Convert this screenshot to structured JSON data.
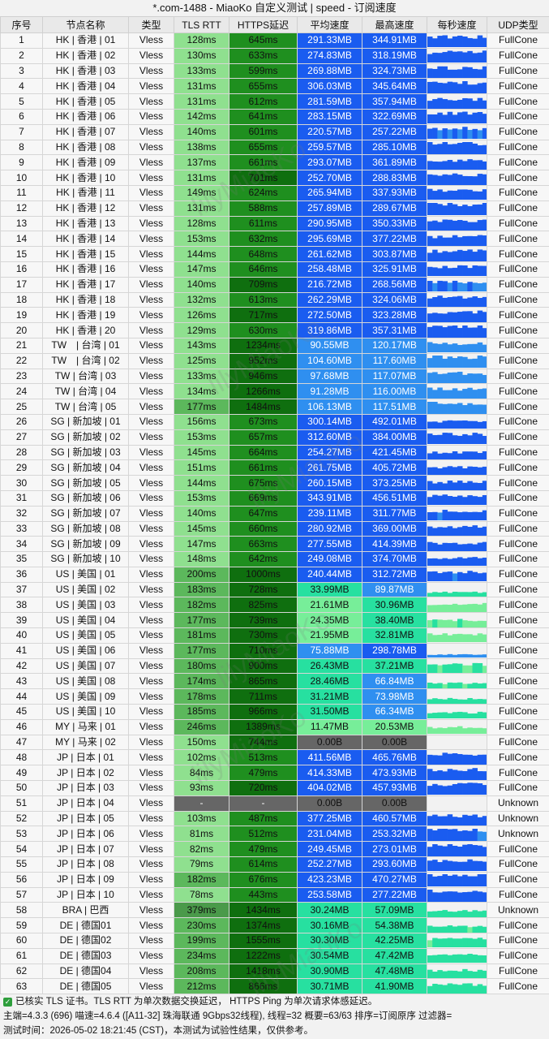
{
  "title": "*.com-1488 - MiaoKo 自定义测试 | speed - 订阅速度",
  "headers": [
    "序号",
    "节点名称",
    "类型",
    "TLS RTT",
    "HTTPS延迟",
    "平均速度",
    "最高速度",
    "每秒速度",
    "UDP类型"
  ],
  "rows": [
    [
      "1",
      "HK | 香港 | 01",
      "Vless",
      "128ms",
      "645ms",
      "291.33MB",
      "344.91MB",
      "FullCone"
    ],
    [
      "2",
      "HK | 香港 | 02",
      "Vless",
      "130ms",
      "633ms",
      "274.83MB",
      "318.19MB",
      "FullCone"
    ],
    [
      "3",
      "HK | 香港 | 03",
      "Vless",
      "133ms",
      "599ms",
      "269.88MB",
      "324.73MB",
      "FullCone"
    ],
    [
      "4",
      "HK | 香港 | 04",
      "Vless",
      "131ms",
      "655ms",
      "306.03MB",
      "345.64MB",
      "FullCone"
    ],
    [
      "5",
      "HK | 香港 | 05",
      "Vless",
      "131ms",
      "612ms",
      "281.59MB",
      "357.94MB",
      "FullCone"
    ],
    [
      "6",
      "HK | 香港 | 06",
      "Vless",
      "142ms",
      "641ms",
      "283.15MB",
      "322.69MB",
      "FullCone"
    ],
    [
      "7",
      "HK | 香港 | 07",
      "Vless",
      "140ms",
      "601ms",
      "220.57MB",
      "257.22MB",
      "FullCone"
    ],
    [
      "8",
      "HK | 香港 | 08",
      "Vless",
      "138ms",
      "655ms",
      "259.57MB",
      "285.10MB",
      "FullCone"
    ],
    [
      "9",
      "HK | 香港 | 09",
      "Vless",
      "137ms",
      "661ms",
      "293.07MB",
      "361.89MB",
      "FullCone"
    ],
    [
      "10",
      "HK | 香港 | 10",
      "Vless",
      "131ms",
      "701ms",
      "252.70MB",
      "288.83MB",
      "FullCone"
    ],
    [
      "11",
      "HK | 香港 | 11",
      "Vless",
      "149ms",
      "624ms",
      "265.94MB",
      "337.93MB",
      "FullCone"
    ],
    [
      "12",
      "HK | 香港 | 12",
      "Vless",
      "131ms",
      "588ms",
      "257.89MB",
      "289.67MB",
      "FullCone"
    ],
    [
      "13",
      "HK | 香港 | 13",
      "Vless",
      "128ms",
      "611ms",
      "290.95MB",
      "350.33MB",
      "FullCone"
    ],
    [
      "14",
      "HK | 香港 | 14",
      "Vless",
      "153ms",
      "632ms",
      "295.69MB",
      "377.22MB",
      "FullCone"
    ],
    [
      "15",
      "HK | 香港 | 15",
      "Vless",
      "144ms",
      "648ms",
      "261.62MB",
      "303.87MB",
      "FullCone"
    ],
    [
      "16",
      "HK | 香港 | 16",
      "Vless",
      "147ms",
      "646ms",
      "258.48MB",
      "325.91MB",
      "FullCone"
    ],
    [
      "17",
      "HK | 香港 | 17",
      "Vless",
      "140ms",
      "709ms",
      "216.72MB",
      "268.56MB",
      "FullCone"
    ],
    [
      "18",
      "HK | 香港 | 18",
      "Vless",
      "132ms",
      "613ms",
      "262.29MB",
      "324.06MB",
      "FullCone"
    ],
    [
      "19",
      "HK | 香港 | 19",
      "Vless",
      "126ms",
      "717ms",
      "272.50MB",
      "323.28MB",
      "FullCone"
    ],
    [
      "20",
      "HK | 香港 | 20",
      "Vless",
      "129ms",
      "630ms",
      "319.86MB",
      "357.31MB",
      "FullCone"
    ],
    [
      "21",
      "TW　| 台湾 | 01",
      "Vless",
      "143ms",
      "1234ms",
      "90.55MB",
      "120.17MB",
      "FullCone"
    ],
    [
      "22",
      "TW　| 台湾 | 02",
      "Vless",
      "125ms",
      "952ms",
      "104.60MB",
      "117.60MB",
      "FullCone"
    ],
    [
      "23",
      "TW | 台湾 | 03",
      "Vless",
      "133ms",
      "946ms",
      "97.68MB",
      "117.07MB",
      "FullCone"
    ],
    [
      "24",
      "TW | 台湾 | 04",
      "Vless",
      "134ms",
      "1266ms",
      "91.28MB",
      "116.00MB",
      "FullCone"
    ],
    [
      "25",
      "TW | 台湾 | 05",
      "Vless",
      "177ms",
      "1484ms",
      "106.13MB",
      "117.51MB",
      "FullCone"
    ],
    [
      "26",
      "SG | 新加坡 | 01",
      "Vless",
      "156ms",
      "673ms",
      "300.14MB",
      "492.01MB",
      "FullCone"
    ],
    [
      "27",
      "SG | 新加坡 | 02",
      "Vless",
      "153ms",
      "657ms",
      "312.60MB",
      "384.00MB",
      "FullCone"
    ],
    [
      "28",
      "SG | 新加坡 | 03",
      "Vless",
      "145ms",
      "664ms",
      "254.27MB",
      "421.45MB",
      "FullCone"
    ],
    [
      "29",
      "SG | 新加坡 | 04",
      "Vless",
      "151ms",
      "661ms",
      "261.75MB",
      "405.72MB",
      "FullCone"
    ],
    [
      "30",
      "SG | 新加坡 | 05",
      "Vless",
      "144ms",
      "675ms",
      "260.15MB",
      "373.25MB",
      "FullCone"
    ],
    [
      "31",
      "SG | 新加坡 | 06",
      "Vless",
      "153ms",
      "669ms",
      "343.91MB",
      "456.51MB",
      "FullCone"
    ],
    [
      "32",
      "SG | 新加坡 | 07",
      "Vless",
      "140ms",
      "647ms",
      "239.11MB",
      "311.77MB",
      "FullCone"
    ],
    [
      "33",
      "SG | 新加坡 | 08",
      "Vless",
      "145ms",
      "660ms",
      "280.92MB",
      "369.00MB",
      "FullCone"
    ],
    [
      "34",
      "SG | 新加坡 | 09",
      "Vless",
      "147ms",
      "663ms",
      "277.55MB",
      "414.39MB",
      "FullCone"
    ],
    [
      "35",
      "SG | 新加坡 | 10",
      "Vless",
      "148ms",
      "642ms",
      "249.08MB",
      "374.70MB",
      "FullCone"
    ],
    [
      "36",
      "US | 美国 | 01",
      "Vless",
      "200ms",
      "1000ms",
      "240.44MB",
      "312.72MB",
      "FullCone"
    ],
    [
      "37",
      "US | 美国 | 02",
      "Vless",
      "183ms",
      "728ms",
      "33.99MB",
      "89.87MB",
      "FullCone"
    ],
    [
      "38",
      "US | 美国 | 03",
      "Vless",
      "182ms",
      "825ms",
      "21.61MB",
      "30.96MB",
      "FullCone"
    ],
    [
      "39",
      "US | 美国 | 04",
      "Vless",
      "177ms",
      "739ms",
      "24.35MB",
      "38.40MB",
      "FullCone"
    ],
    [
      "40",
      "US | 美国 | 05",
      "Vless",
      "181ms",
      "730ms",
      "21.95MB",
      "32.81MB",
      "FullCone"
    ],
    [
      "41",
      "US | 美国 | 06",
      "Vless",
      "177ms",
      "710ms",
      "75.88MB",
      "298.78MB",
      "FullCone"
    ],
    [
      "42",
      "US | 美国 | 07",
      "Vless",
      "180ms",
      "900ms",
      "26.43MB",
      "37.21MB",
      "FullCone"
    ],
    [
      "43",
      "US | 美国 | 08",
      "Vless",
      "174ms",
      "865ms",
      "28.46MB",
      "66.84MB",
      "FullCone"
    ],
    [
      "44",
      "US | 美国 | 09",
      "Vless",
      "178ms",
      "711ms",
      "31.21MB",
      "73.98MB",
      "FullCone"
    ],
    [
      "45",
      "US | 美国 | 10",
      "Vless",
      "185ms",
      "966ms",
      "31.50MB",
      "66.34MB",
      "FullCone"
    ],
    [
      "46",
      "MY | 马来 | 01",
      "Vless",
      "246ms",
      "1389ms",
      "11.47MB",
      "20.53MB",
      "FullCone"
    ],
    [
      "47",
      "MY | 马来 | 02",
      "Vless",
      "150ms",
      "744ms",
      "0.00B",
      "0.00B",
      "FullCone"
    ],
    [
      "48",
      "JP | 日本 | 01",
      "Vless",
      "102ms",
      "513ms",
      "411.56MB",
      "465.76MB",
      "FullCone"
    ],
    [
      "49",
      "JP | 日本 | 02",
      "Vless",
      "84ms",
      "479ms",
      "414.33MB",
      "473.93MB",
      "FullCone"
    ],
    [
      "50",
      "JP | 日本 | 03",
      "Vless",
      "93ms",
      "720ms",
      "404.02MB",
      "457.93MB",
      "FullCone"
    ],
    [
      "51",
      "JP | 日本 | 04",
      "Vless",
      "-",
      "-",
      "0.00B",
      "0.00B",
      "Unknown"
    ],
    [
      "52",
      "JP | 日本 | 05",
      "Vless",
      "103ms",
      "487ms",
      "377.25MB",
      "460.57MB",
      "Unknown"
    ],
    [
      "53",
      "JP | 日本 | 06",
      "Vless",
      "81ms",
      "512ms",
      "231.04MB",
      "253.32MB",
      "Unknown"
    ],
    [
      "54",
      "JP | 日本 | 07",
      "Vless",
      "82ms",
      "479ms",
      "249.45MB",
      "273.01MB",
      "FullCone"
    ],
    [
      "55",
      "JP | 日本 | 08",
      "Vless",
      "79ms",
      "614ms",
      "252.27MB",
      "293.60MB",
      "FullCone"
    ],
    [
      "56",
      "JP | 日本 | 09",
      "Vless",
      "182ms",
      "676ms",
      "423.23MB",
      "470.27MB",
      "FullCone"
    ],
    [
      "57",
      "JP | 日本 | 10",
      "Vless",
      "78ms",
      "443ms",
      "253.58MB",
      "277.22MB",
      "FullCone"
    ],
    [
      "58",
      "BRA | 巴西",
      "Vless",
      "379ms",
      "1434ms",
      "30.24MB",
      "57.09MB",
      "Unknown"
    ],
    [
      "59",
      "DE | 德国01",
      "Vless",
      "230ms",
      "1374ms",
      "30.16MB",
      "54.38MB",
      "FullCone"
    ],
    [
      "60",
      "DE | 德国02",
      "Vless",
      "199ms",
      "1555ms",
      "30.30MB",
      "42.25MB",
      "FullCone"
    ],
    [
      "61",
      "DE | 德国03",
      "Vless",
      "234ms",
      "1222ms",
      "30.54MB",
      "47.42MB",
      "FullCone"
    ],
    [
      "62",
      "DE | 德国04",
      "Vless",
      "208ms",
      "1418ms",
      "30.90MB",
      "47.48MB",
      "FullCone"
    ],
    [
      "63",
      "DE | 德国05",
      "Vless",
      "212ms",
      "866ms",
      "30.71MB",
      "41.90MB",
      "FullCone"
    ]
  ],
  "footer": {
    "line1": "已核实 TLS 证书。TLS RTT 为单次数据交换延迟， HTTPS Ping 为单次请求体感延迟。",
    "line2": "主端=4.3.3 (696) 喵速=4.6.4 ([A11-32] 珠海联通 9Gbps32线程), 线程=32 概要=63/63 排序=订阅原序 过滤器=",
    "line3": "测试时间：2026-05-02 18:21:45 (CST)，本测试为试验性结果，仅供参考。"
  },
  "watermark": "lilyMiaoKo",
  "colors": {
    "rtt_fast": "#8fe08f",
    "rtt_mid": "#5cb85c",
    "https_fast": "#1f8f1f",
    "https_slow": "#0f6f0f",
    "speed_high": "#1a5cf0",
    "speed_mid": "#2f8ff0",
    "speed_low": "#27e0a0",
    "speed_vlow": "#77ee99",
    "zero": "#666666"
  }
}
